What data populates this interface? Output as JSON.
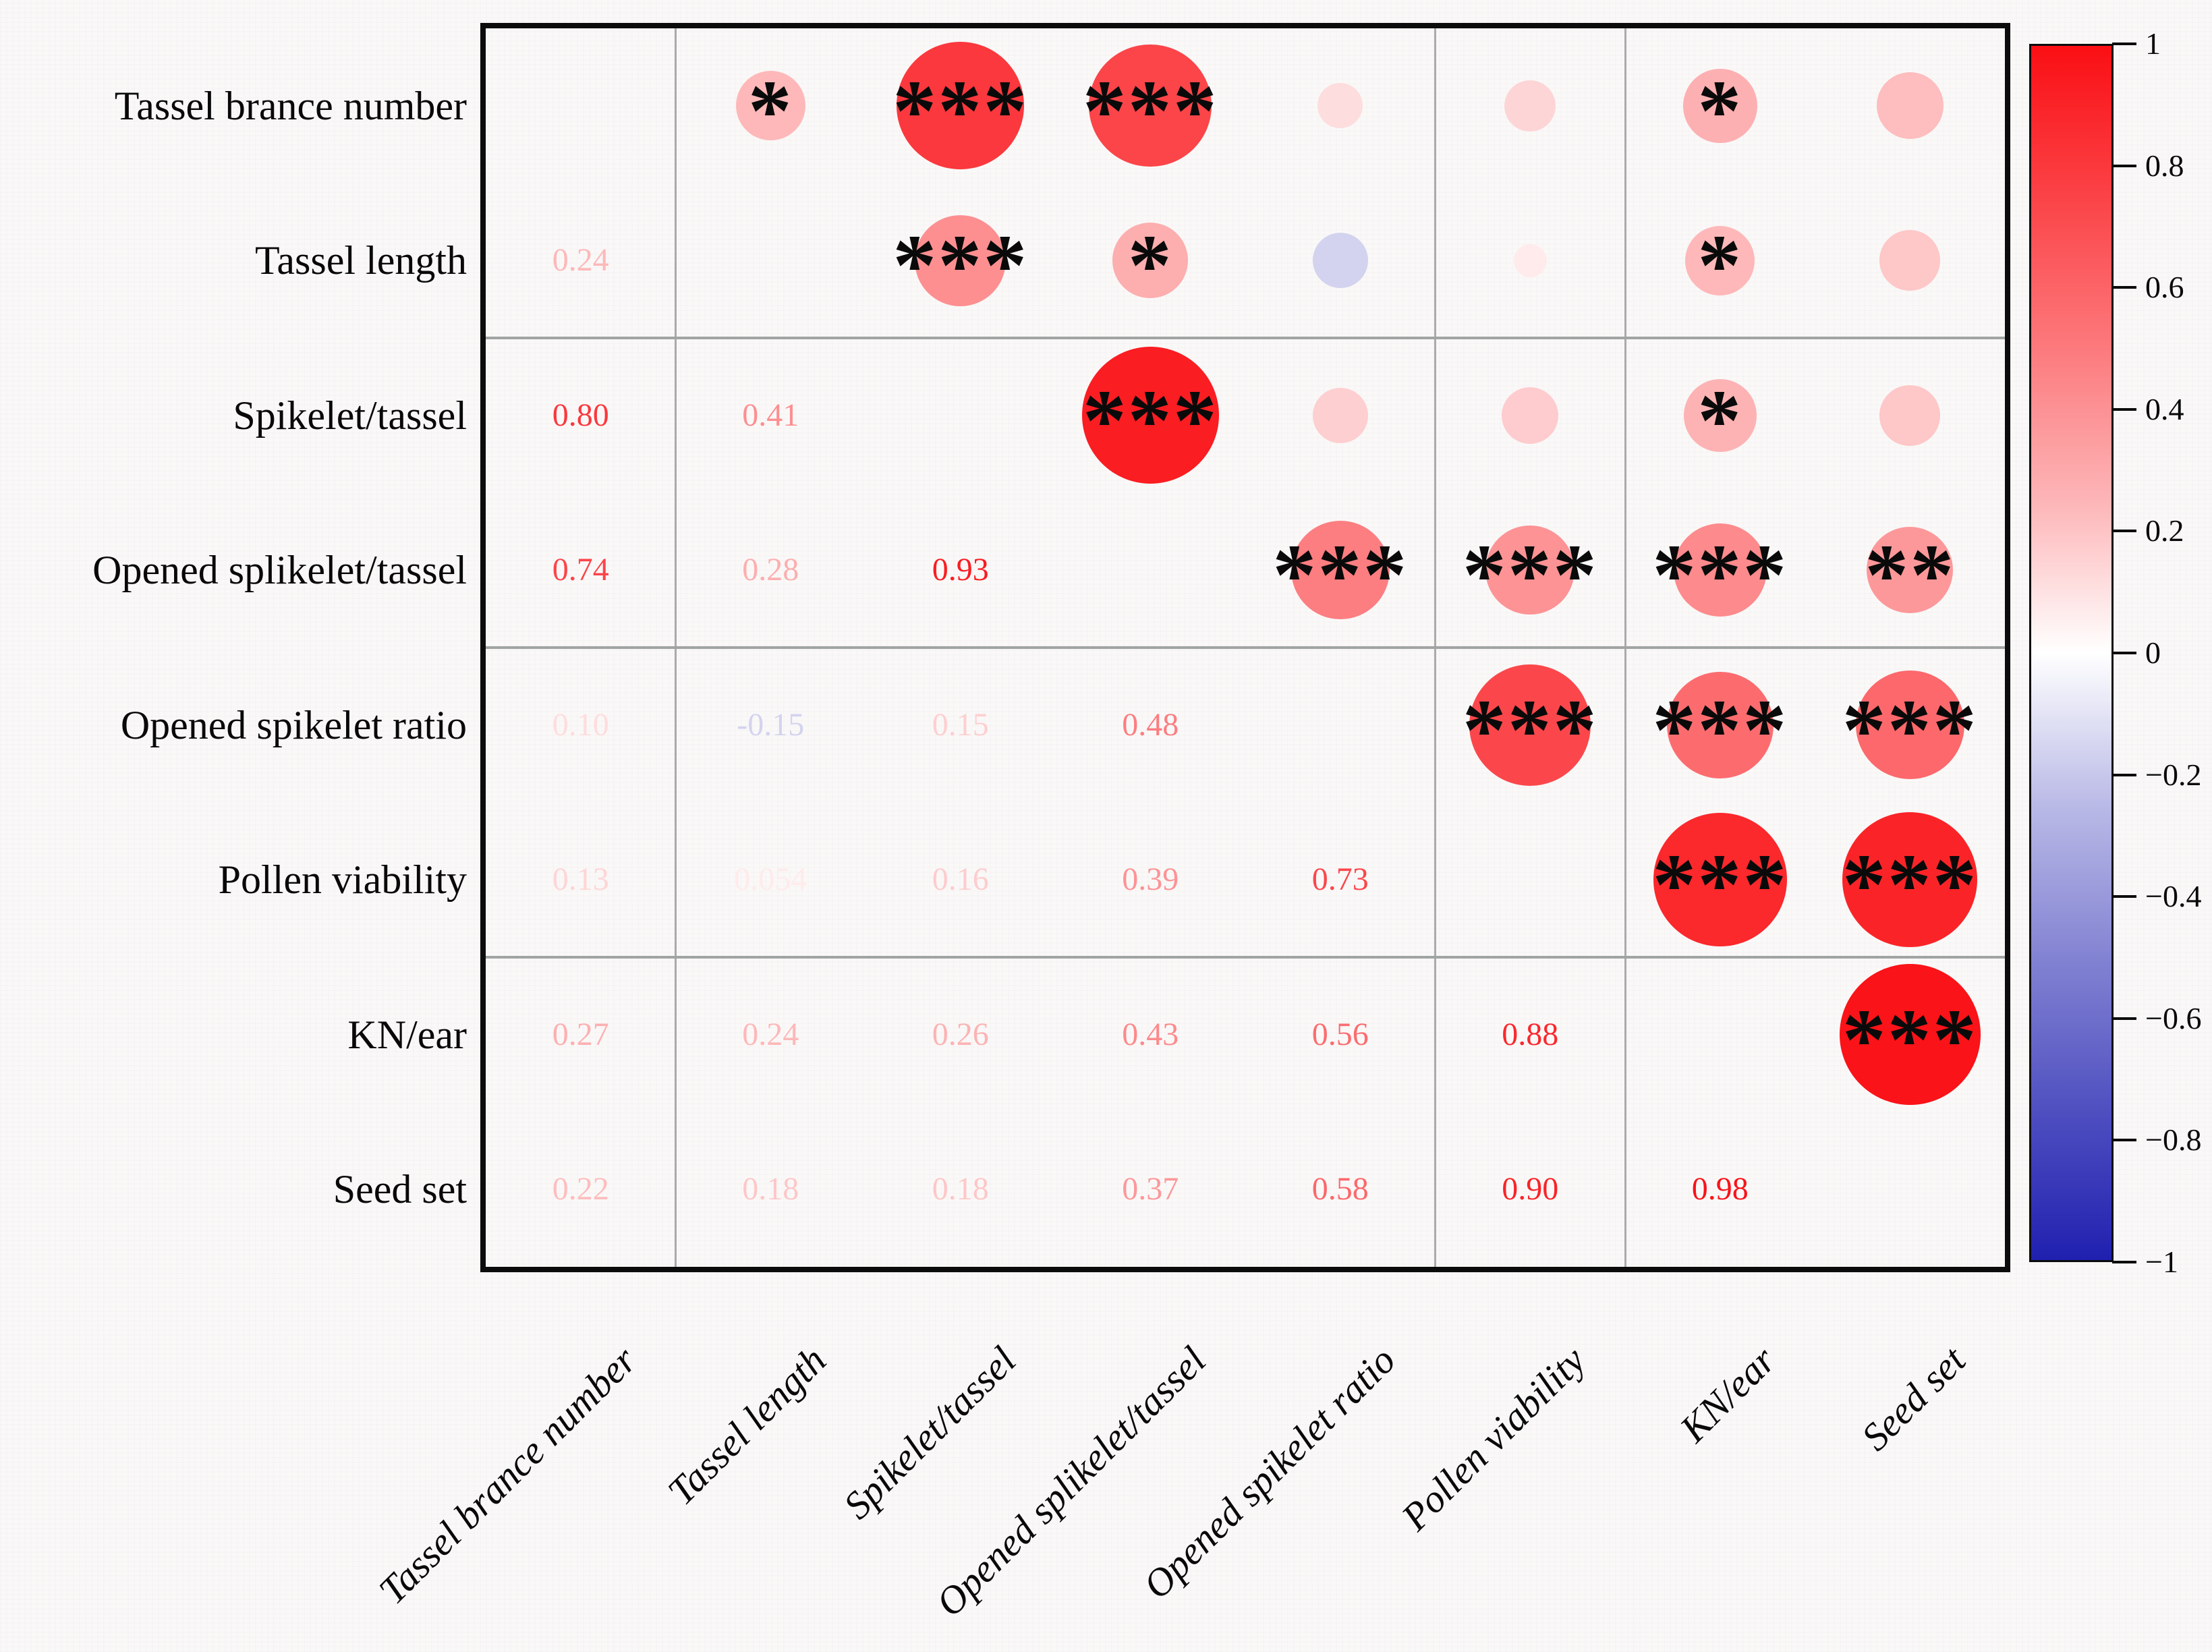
{
  "figure": {
    "background": "#FAF9F8",
    "border_color": "#0c0c0c",
    "grid_color": "#ABABAB"
  },
  "chart_data": {
    "type": "heatmap",
    "subtype": "correlation-matrix-corrplot",
    "variables": [
      "Tassel brance number",
      "Tassel length",
      "Spikelet/tassel",
      "Opened splikelet/tassel",
      "Opened spikelet ratio",
      "Pollen viability",
      "KN/ear",
      "Seed set"
    ],
    "column_labels": [
      "Tassel brance number",
      "Tassel length",
      "Spikelet/tassel",
      "Opened splikelet/tassel",
      "Opened spikelet ratio",
      "Pollen viability",
      "KN/ear",
      "Seed set"
    ],
    "upper_triangle": "circles sized and colored by correlation with significance stars",
    "lower_triangle": "numeric correlation values colored by correlation",
    "pairs": [
      {
        "a": 0,
        "b": 1,
        "r": 0.24,
        "display": "0.24",
        "sig": "*"
      },
      {
        "a": 0,
        "b": 2,
        "r": 0.8,
        "display": "0.80",
        "sig": "***"
      },
      {
        "a": 0,
        "b": 3,
        "r": 0.74,
        "display": "0.74",
        "sig": "***"
      },
      {
        "a": 0,
        "b": 4,
        "r": 0.1,
        "display": "0.10",
        "sig": ""
      },
      {
        "a": 0,
        "b": 5,
        "r": 0.13,
        "display": "0.13",
        "sig": ""
      },
      {
        "a": 0,
        "b": 6,
        "r": 0.27,
        "display": "0.27",
        "sig": "*"
      },
      {
        "a": 0,
        "b": 7,
        "r": 0.22,
        "display": "0.22",
        "sig": ""
      },
      {
        "a": 1,
        "b": 2,
        "r": 0.41,
        "display": "0.41",
        "sig": "***"
      },
      {
        "a": 1,
        "b": 3,
        "r": 0.28,
        "display": "0.28",
        "sig": "*"
      },
      {
        "a": 1,
        "b": 4,
        "r": -0.15,
        "display": "-0.15",
        "sig": ""
      },
      {
        "a": 1,
        "b": 5,
        "r": 0.054,
        "display": "0.054",
        "sig": ""
      },
      {
        "a": 1,
        "b": 6,
        "r": 0.24,
        "display": "0.24",
        "sig": "*"
      },
      {
        "a": 1,
        "b": 7,
        "r": 0.18,
        "display": "0.18",
        "sig": ""
      },
      {
        "a": 2,
        "b": 3,
        "r": 0.93,
        "display": "0.93",
        "sig": "***"
      },
      {
        "a": 2,
        "b": 4,
        "r": 0.15,
        "display": "0.15",
        "sig": ""
      },
      {
        "a": 2,
        "b": 5,
        "r": 0.16,
        "display": "0.16",
        "sig": ""
      },
      {
        "a": 2,
        "b": 6,
        "r": 0.26,
        "display": "0.26",
        "sig": "*"
      },
      {
        "a": 2,
        "b": 7,
        "r": 0.18,
        "display": "0.18",
        "sig": ""
      },
      {
        "a": 3,
        "b": 4,
        "r": 0.48,
        "display": "0.48",
        "sig": "***"
      },
      {
        "a": 3,
        "b": 5,
        "r": 0.39,
        "display": "0.39",
        "sig": "***"
      },
      {
        "a": 3,
        "b": 6,
        "r": 0.43,
        "display": "0.43",
        "sig": "***"
      },
      {
        "a": 3,
        "b": 7,
        "r": 0.37,
        "display": "0.37",
        "sig": "**"
      },
      {
        "a": 4,
        "b": 5,
        "r": 0.73,
        "display": "0.73",
        "sig": "***"
      },
      {
        "a": 4,
        "b": 6,
        "r": 0.56,
        "display": "0.56",
        "sig": "***"
      },
      {
        "a": 4,
        "b": 7,
        "r": 0.58,
        "display": "0.58",
        "sig": "***"
      },
      {
        "a": 5,
        "b": 6,
        "r": 0.88,
        "display": "0.88",
        "sig": "***"
      },
      {
        "a": 5,
        "b": 7,
        "r": 0.9,
        "display": "0.90",
        "sig": "***"
      },
      {
        "a": 6,
        "b": 7,
        "r": 0.98,
        "display": "0.98",
        "sig": "***"
      }
    ],
    "colormap": {
      "positive": "#FA0F14",
      "zero": "#FFFFFF",
      "negative": "#2020B0",
      "gamma": 0.85
    },
    "colorbar": {
      "min": -1,
      "max": 1,
      "tick_labels": [
        "1",
        "0.8",
        "0.6",
        "0.4",
        "0.2",
        "0",
        "−0.2",
        "−0.4",
        "−0.6",
        "−0.8",
        "−1"
      ],
      "tick_values": [
        1,
        0.8,
        0.6,
        0.4,
        0.2,
        0,
        -0.2,
        -0.4,
        -0.6,
        -0.8,
        -1
      ],
      "position": "right"
    },
    "grid": {
      "vertical_after_columns": [
        1,
        5,
        6
      ],
      "horizontal_after_rows": [
        2,
        4,
        6
      ]
    },
    "axis_ranges": {
      "rows": 8,
      "cols": 8
    },
    "legend_position": "right-colorbar",
    "title": ""
  }
}
